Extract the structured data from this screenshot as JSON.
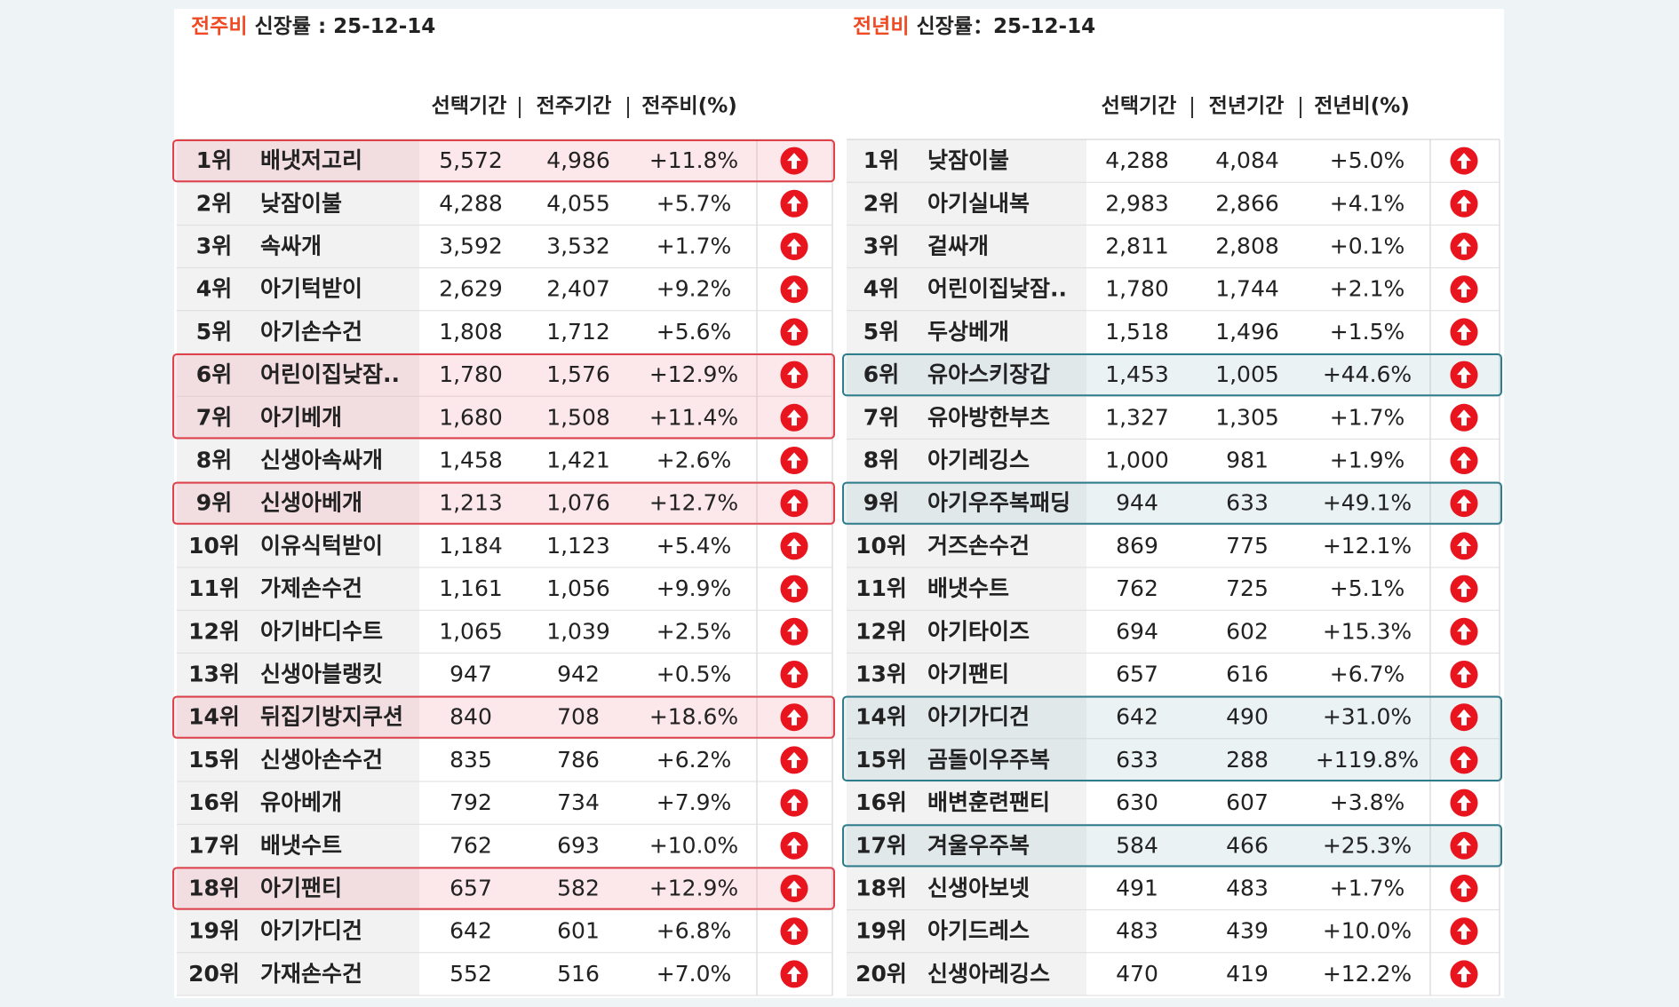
{
  "tables": [
    {
      "title_label": "전주비",
      "title_text": "신장률 : 25-12-14",
      "columns": [
        "선택기간",
        "전주기간",
        "전주비(%)"
      ],
      "rows": [
        [
          "1위",
          "배냇저고리",
          "5,572",
          "4,986",
          "+11.8%"
        ],
        [
          "2위",
          "낮잠이불",
          "4,288",
          "4,055",
          "+5.7%"
        ],
        [
          "3위",
          "속싸개",
          "3,592",
          "3,532",
          "+1.7%"
        ],
        [
          "4위",
          "아기턱받이",
          "2,629",
          "2,407",
          "+9.2%"
        ],
        [
          "5위",
          "아기손수건",
          "1,808",
          "1,712",
          "+5.6%"
        ],
        [
          "6위",
          "어린이집낮잠..",
          "1,780",
          "1,576",
          "+12.9%"
        ],
        [
          "7위",
          "아기베개",
          "1,680",
          "1,508",
          "+11.4%"
        ],
        [
          "8위",
          "신생아속싸개",
          "1,458",
          "1,421",
          "+2.6%"
        ],
        [
          "9위",
          "신생아베개",
          "1,213",
          "1,076",
          "+12.7%"
        ],
        [
          "10위",
          "이유식턱받이",
          "1,184",
          "1,123",
          "+5.4%"
        ],
        [
          "11위",
          "가제손수건",
          "1,161",
          "1,056",
          "+9.9%"
        ],
        [
          "12위",
          "아기바디수트",
          "1,065",
          "1,039",
          "+2.5%"
        ],
        [
          "13위",
          "신생아블랭킷",
          "947",
          "942",
          "+0.5%"
        ],
        [
          "14위",
          "뒤집기방지쿠션",
          "840",
          "708",
          "+18.6%"
        ],
        [
          "15위",
          "신생아손수건",
          "835",
          "786",
          "+6.2%"
        ],
        [
          "16위",
          "유아베개",
          "792",
          "734",
          "+7.9%"
        ],
        [
          "17위",
          "배냇수트",
          "762",
          "693",
          "+10.0%"
        ],
        [
          "18위",
          "아기팬티",
          "657",
          "582",
          "+12.9%"
        ],
        [
          "19위",
          "아기가디건",
          "642",
          "601",
          "+6.8%"
        ],
        [
          "20위",
          "가재손수건",
          "552",
          "516",
          "+7.0%"
        ]
      ]
    },
    {
      "title_label": "전년비",
      "title_text": "신장률：25-12-14",
      "columns": [
        "선택기간",
        "전년기간",
        "전년비(%)"
      ],
      "rows": [
        [
          "1위",
          "낮잠이불",
          "4,288",
          "4,084",
          "+5.0%"
        ],
        [
          "2위",
          "아기실내복",
          "2,983",
          "2,866",
          "+4.1%"
        ],
        [
          "3위",
          "겉싸개",
          "2,811",
          "2,808",
          "+0.1%"
        ],
        [
          "4위",
          "어린이집낮잠..",
          "1,780",
          "1,744",
          "+2.1%"
        ],
        [
          "5위",
          "두상베개",
          "1,518",
          "1,496",
          "+1.5%"
        ],
        [
          "6위",
          "유아스키장갑",
          "1,453",
          "1,005",
          "+44.6%"
        ],
        [
          "7위",
          "유아방한부츠",
          "1,327",
          "1,305",
          "+1.7%"
        ],
        [
          "8위",
          "아기레깅스",
          "1,000",
          "981",
          "+1.9%"
        ],
        [
          "9위",
          "아기우주복패딩",
          "944",
          "633",
          "+49.1%"
        ],
        [
          "10위",
          "거즈손수건",
          "869",
          "775",
          "+12.1%"
        ],
        [
          "11위",
          "배냇수트",
          "762",
          "725",
          "+5.1%"
        ],
        [
          "12위",
          "아기타이즈",
          "694",
          "602",
          "+15.3%"
        ],
        [
          "13위",
          "아기팬티",
          "657",
          "616",
          "+6.7%"
        ],
        [
          "14위",
          "아기가디건",
          "642",
          "490",
          "+31.0%"
        ],
        [
          "15위",
          "곰돌이우주복",
          "633",
          "288",
          "+119.8%"
        ],
        [
          "16위",
          "배변훈련팬티",
          "630",
          "607",
          "+3.8%"
        ],
        [
          "17위",
          "겨울우주복",
          "584",
          "466",
          "+25.3%"
        ],
        [
          "18위",
          "신생아보넷",
          "491",
          "483",
          "+1.7%"
        ],
        [
          "19위",
          "아기드레스",
          "483",
          "439",
          "+10.0%"
        ],
        [
          "20위",
          "신생아레깅스",
          "470",
          "419",
          "+12.2%"
        ]
      ]
    }
  ]
}
